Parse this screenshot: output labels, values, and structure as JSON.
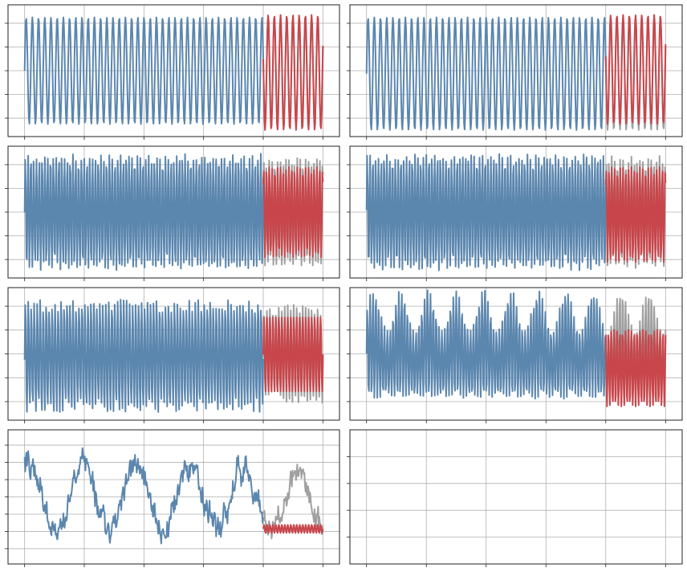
{
  "figure": {
    "background": "#ffffff",
    "colors": {
      "history": "#5b86ae",
      "forecast": "#c8464b",
      "actual": "#a0a0a0",
      "grid": "#b0b0b0",
      "frame": "#222222"
    }
  },
  "chart_data": [
    {
      "type": "line",
      "grid": true,
      "tick_labels_shown": false,
      "x_range": [
        0,
        500
      ],
      "series": [
        {
          "role": "history",
          "color": "#5b86ae",
          "x_range": [
            0,
            400
          ],
          "shape": "sine",
          "period": 10.4,
          "min": 0.05,
          "max": 0.95,
          "noise": 0
        },
        {
          "role": "actual",
          "color": "#a0a0a0",
          "x_range": [
            400,
            500
          ],
          "shape": "sine",
          "period": 10.4,
          "min": 0.05,
          "max": 0.95,
          "noise": 0
        },
        {
          "role": "forecast",
          "color": "#c8464b",
          "x_range": [
            400,
            500
          ],
          "shape": "sine",
          "period": 10.4,
          "min": 0.0,
          "max": 0.97,
          "noise": 0
        }
      ]
    },
    {
      "type": "line",
      "grid": true,
      "tick_labels_shown": false,
      "x_range": [
        0,
        500
      ],
      "series": [
        {
          "role": "history",
          "color": "#5b86ae",
          "x_range": [
            0,
            400
          ],
          "shape": "sine",
          "period": 10.4,
          "min": 0.0,
          "max": 0.95,
          "noise": 0
        },
        {
          "role": "actual",
          "color": "#a0a0a0",
          "x_range": [
            400,
            500
          ],
          "shape": "sine",
          "period": 10.4,
          "min": 0.0,
          "max": 0.95,
          "noise": 0
        },
        {
          "role": "forecast",
          "color": "#c8464b",
          "x_range": [
            400,
            500
          ],
          "shape": "sine",
          "period": 10.4,
          "min": 0.05,
          "max": 0.97,
          "noise": 0
        }
      ]
    },
    {
      "type": "line",
      "grid": true,
      "tick_labels_shown": false,
      "x_range": [
        0,
        500
      ],
      "series": [
        {
          "role": "history",
          "color": "#5b86ae",
          "x_range": [
            0,
            400
          ],
          "shape": "sine",
          "period": 4.7,
          "min": 0.03,
          "max": 0.97,
          "noise": 0.05
        },
        {
          "role": "actual",
          "color": "#a0a0a0",
          "x_range": [
            400,
            500
          ],
          "shape": "sine",
          "period": 4.7,
          "min": 0.05,
          "max": 0.95,
          "noise": 0.05
        },
        {
          "role": "forecast",
          "color": "#c8464b",
          "x_range": [
            400,
            500
          ],
          "shape": "sine",
          "period": 4.7,
          "min": 0.12,
          "max": 0.88,
          "noise": 0
        }
      ]
    },
    {
      "type": "line",
      "grid": true,
      "tick_labels_shown": false,
      "x_range": [
        0,
        500
      ],
      "series": [
        {
          "role": "history",
          "color": "#5b86ae",
          "x_range": [
            0,
            400
          ],
          "shape": "sine",
          "period": 4.7,
          "min": 0.03,
          "max": 0.97,
          "noise": 0.05
        },
        {
          "role": "actual",
          "color": "#a0a0a0",
          "x_range": [
            400,
            500
          ],
          "shape": "sine",
          "period": 4.7,
          "min": 0.05,
          "max": 0.95,
          "noise": 0.05
        },
        {
          "role": "forecast",
          "color": "#c8464b",
          "x_range": [
            400,
            500
          ],
          "shape": "sine",
          "period": 4.7,
          "min": 0.08,
          "max": 0.88,
          "noise": 0
        }
      ]
    },
    {
      "type": "line",
      "grid": true,
      "tick_labels_shown": false,
      "x_range": [
        0,
        500
      ],
      "series": [
        {
          "role": "history",
          "color": "#5b86ae",
          "x_range": [
            0,
            400
          ],
          "shape": "sine",
          "period": 5.0,
          "min": 0.05,
          "max": 0.92,
          "noise": 0.12
        },
        {
          "role": "actual",
          "color": "#a0a0a0",
          "x_range": [
            400,
            500
          ],
          "shape": "sine",
          "period": 5.0,
          "min": 0.12,
          "max": 0.88,
          "noise": 0.1
        },
        {
          "role": "forecast",
          "color": "#c8464b",
          "x_range": [
            400,
            500
          ],
          "shape": "sine",
          "period": 5.0,
          "min": 0.17,
          "max": 0.82,
          "noise": 0
        }
      ]
    },
    {
      "type": "line",
      "grid": true,
      "tick_labels_shown": false,
      "x_range": [
        0,
        500
      ],
      "series": [
        {
          "role": "history",
          "color": "#5b86ae",
          "x_range": [
            0,
            400
          ],
          "shape": "beating",
          "period": 4.8,
          "envelope_period": 46,
          "min": 0.05,
          "max": 0.95,
          "noise": 0.03
        },
        {
          "role": "actual",
          "color": "#a0a0a0",
          "x_range": [
            400,
            500
          ],
          "shape": "beating",
          "period": 4.8,
          "envelope_period": 46,
          "min": 0.05,
          "max": 0.95,
          "noise": 0.03
        },
        {
          "role": "forecast",
          "color": "#c8464b",
          "x_range": [
            400,
            500
          ],
          "shape": "sine",
          "period": 4.8,
          "min": 0.06,
          "max": 0.7,
          "noise": 0
        }
      ]
    },
    {
      "type": "line",
      "grid": true,
      "tick_labels_shown": false,
      "x_range": [
        0,
        500
      ],
      "series": [
        {
          "role": "history",
          "color": "#5b86ae",
          "x_range": [
            0,
            400
          ],
          "shape": "slow_noisy",
          "period": 90,
          "min": 0.05,
          "max": 0.95,
          "noise": 0.09
        },
        {
          "role": "actual",
          "color": "#a0a0a0",
          "x_range": [
            400,
            500
          ],
          "shape": "slow_noisy",
          "period": 90,
          "min": 0.03,
          "max": 0.9,
          "noise": 0.09
        },
        {
          "role": "forecast",
          "color": "#c8464b",
          "x_range": [
            400,
            500
          ],
          "shape": "sine",
          "period": 5,
          "min": 0.2,
          "max": 0.27,
          "noise": 0
        }
      ]
    },
    {
      "type": "line",
      "grid": true,
      "tick_labels_shown": false,
      "x_range": [
        0,
        500
      ],
      "series": []
    }
  ]
}
